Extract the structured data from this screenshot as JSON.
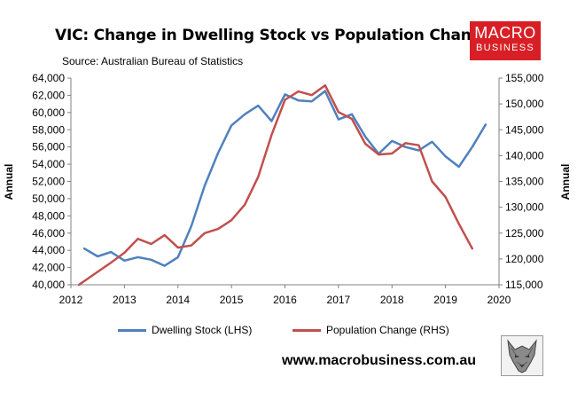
{
  "title": "VIC: Change in Dwelling Stock vs Population Change",
  "source": "Source: Australian Bureau of Statistics",
  "logo": {
    "line1": "MACRO",
    "line2": "BUSINESS"
  },
  "website": "www.macrobusiness.com.au",
  "colors": {
    "dwelling": "#4f81bd",
    "population": "#c0504d",
    "logo_bg": "#d91f26",
    "axis": "#808080"
  },
  "chart_data": {
    "type": "line",
    "title": "VIC: Change in Dwelling Stock vs Population Change",
    "x_ticks": [
      "2012",
      "2013",
      "2014",
      "2015",
      "2016",
      "2017",
      "2018",
      "2019",
      "2020"
    ],
    "xlim": [
      2012,
      2020
    ],
    "ylabel_left": "Annual",
    "ylabel_right": "Annual",
    "ylim_left": [
      40000,
      64000
    ],
    "ylim_right": [
      115000,
      155000
    ],
    "y_ticks_left": [
      "40,000",
      "42,000",
      "44,000",
      "46,000",
      "48,000",
      "50,000",
      "52,000",
      "54,000",
      "56,000",
      "58,000",
      "60,000",
      "62,000",
      "64,000"
    ],
    "y_ticks_right": [
      "115,000",
      "120,000",
      "125,000",
      "130,000",
      "135,000",
      "140,000",
      "145,000",
      "150,000",
      "155,000"
    ],
    "grid": false,
    "legend_position": "bottom",
    "series": [
      {
        "name": "Dwelling Stock (LHS)",
        "axis": "left",
        "color": "#4f81bd",
        "x": [
          2012.25,
          2012.5,
          2012.75,
          2013.0,
          2013.25,
          2013.5,
          2013.75,
          2014.0,
          2014.25,
          2014.5,
          2014.75,
          2015.0,
          2015.25,
          2015.5,
          2015.75,
          2016.0,
          2016.25,
          2016.5,
          2016.75,
          2017.0,
          2017.25,
          2017.5,
          2017.75,
          2018.0,
          2018.25,
          2018.5,
          2018.75,
          2019.0,
          2019.25,
          2019.5,
          2019.75
        ],
        "y": [
          44200,
          43300,
          43800,
          42800,
          43200,
          42900,
          42200,
          43200,
          46800,
          51500,
          55300,
          58500,
          59800,
          60800,
          59000,
          62100,
          61400,
          61300,
          62500,
          59200,
          59800,
          57200,
          55200,
          56700,
          56000,
          55600,
          56600,
          54900,
          53700,
          56000,
          58600
        ]
      },
      {
        "name": "Population Change (RHS)",
        "axis": "right",
        "color": "#c0504d",
        "x": [
          2012.15,
          2012.5,
          2012.75,
          2013.0,
          2013.25,
          2013.5,
          2013.75,
          2014.0,
          2014.25,
          2014.5,
          2014.75,
          2015.0,
          2015.25,
          2015.5,
          2015.75,
          2016.0,
          2016.25,
          2016.5,
          2016.75,
          2017.0,
          2017.25,
          2017.5,
          2017.75,
          2018.0,
          2018.25,
          2018.5,
          2018.75,
          2019.0,
          2019.25,
          2019.5
        ],
        "y": [
          115000,
          117500,
          119300,
          121200,
          123900,
          122900,
          124600,
          122200,
          122600,
          125000,
          125800,
          127500,
          130500,
          135900,
          144000,
          150800,
          152400,
          151700,
          153600,
          148400,
          147100,
          142300,
          140200,
          140400,
          142400,
          142000,
          135000,
          132000,
          126800,
          122000
        ]
      }
    ]
  }
}
